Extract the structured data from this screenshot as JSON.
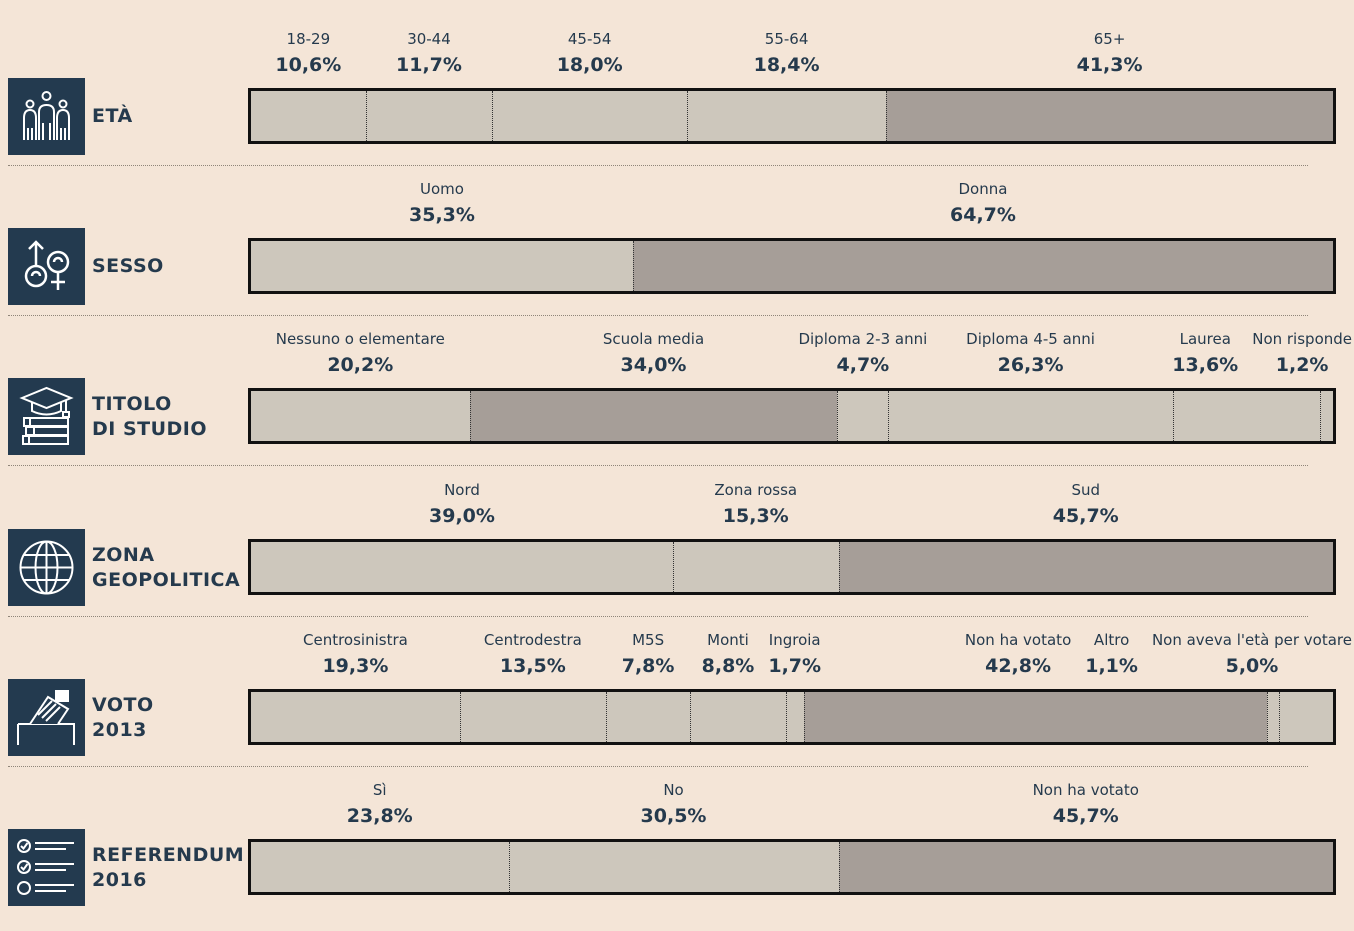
{
  "chart_data": {
    "type": "stacked-bar",
    "rows": [
      {
        "id": "eta",
        "label": [
          "ETÀ"
        ],
        "icon": "people-icon",
        "segments": [
          {
            "name": "18-29",
            "value": 10.6,
            "label": "10,6%",
            "shade": "light"
          },
          {
            "name": "30-44",
            "value": 11.7,
            "label": "11,7%",
            "shade": "light"
          },
          {
            "name": "45-54",
            "value": 18.0,
            "label": "18,0%",
            "shade": "light"
          },
          {
            "name": "55-64",
            "value": 18.4,
            "label": "18,4%",
            "shade": "light"
          },
          {
            "name": "65+",
            "value": 41.3,
            "label": "41,3%",
            "shade": "dark"
          }
        ]
      },
      {
        "id": "sesso",
        "label": [
          "SESSO"
        ],
        "icon": "gender-icon",
        "segments": [
          {
            "name": "Uomo",
            "value": 35.3,
            "label": "35,3%",
            "shade": "light"
          },
          {
            "name": "Donna",
            "value": 64.7,
            "label": "64,7%",
            "shade": "dark"
          }
        ]
      },
      {
        "id": "titolo",
        "label": [
          "TITOLO",
          "DI STUDIO"
        ],
        "icon": "graduation-books-icon",
        "segments": [
          {
            "name": "Nessuno o elementare",
            "value": 20.2,
            "label": "20,2%",
            "shade": "light"
          },
          {
            "name": "Scuola media",
            "value": 34.0,
            "label": "34,0%",
            "shade": "dark"
          },
          {
            "name": "Diploma 2-3 anni",
            "value": 4.7,
            "label": "4,7%",
            "shade": "light"
          },
          {
            "name": "Diploma 4-5 anni",
            "value": 26.3,
            "label": "26,3%",
            "shade": "light"
          },
          {
            "name": "Laurea",
            "value": 13.6,
            "label": "13,6%",
            "shade": "light"
          },
          {
            "name": "Non risponde",
            "value": 1.2,
            "label": "1,2%",
            "shade": "light"
          }
        ]
      },
      {
        "id": "zona",
        "label": [
          "ZONA",
          "GEOPOLITICA"
        ],
        "icon": "globe-icon",
        "segments": [
          {
            "name": "Nord",
            "value": 39.0,
            "label": "39,0%",
            "shade": "light"
          },
          {
            "name": "Zona rossa",
            "value": 15.3,
            "label": "15,3%",
            "shade": "light"
          },
          {
            "name": "Sud",
            "value": 45.7,
            "label": "45,7%",
            "shade": "dark"
          }
        ]
      },
      {
        "id": "voto",
        "label": [
          "VOTO",
          "2013"
        ],
        "icon": "ballot-box-icon",
        "segments": [
          {
            "name": "Centrosinistra",
            "value": 19.3,
            "label": "19,3%",
            "shade": "light"
          },
          {
            "name": "Centrodestra",
            "value": 13.5,
            "label": "13,5%",
            "shade": "light"
          },
          {
            "name": "M5S",
            "value": 7.8,
            "label": "7,8%",
            "shade": "light"
          },
          {
            "name": "Monti",
            "value": 8.8,
            "label": "8,8%",
            "shade": "light"
          },
          {
            "name": "Ingroia",
            "value": 1.7,
            "label": "1,7%",
            "shade": "light"
          },
          {
            "name": "Non ha votato",
            "value": 42.8,
            "label": "42,8%",
            "shade": "dark"
          },
          {
            "name": "Altro",
            "value": 1.1,
            "label": "1,1%",
            "shade": "light"
          },
          {
            "name": "Non aveva l'età per votare",
            "value": 5.0,
            "label": "5,0%",
            "shade": "light"
          }
        ]
      },
      {
        "id": "referendum",
        "label": [
          "REFERENDUM",
          "2016"
        ],
        "icon": "checklist-icon",
        "segments": [
          {
            "name": "Sì",
            "value": 23.8,
            "label": "23,8%",
            "shade": "light"
          },
          {
            "name": "No",
            "value": 30.5,
            "label": "30,5%",
            "shade": "light"
          },
          {
            "name": "Non ha votato",
            "value": 45.7,
            "label": "45,7%",
            "shade": "dark"
          }
        ]
      }
    ]
  },
  "colors": {
    "background": "#f4e5d7",
    "light_segment": "#cdc7bc",
    "dark_segment": "#a69e98",
    "icon_background": "#233a4f",
    "text": "#253a4d"
  }
}
